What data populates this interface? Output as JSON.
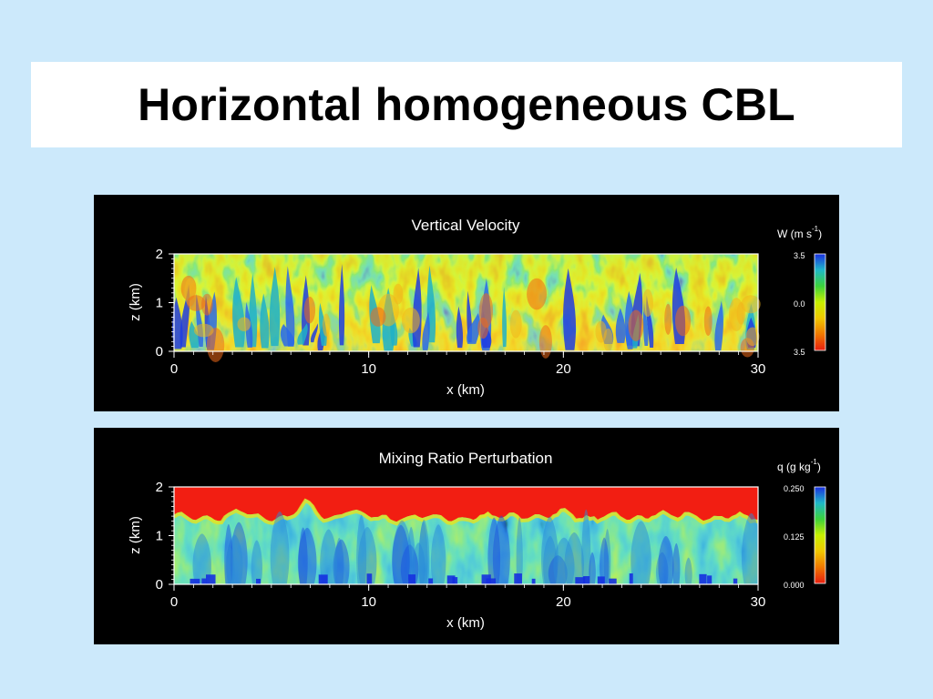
{
  "slide": {
    "title": "Horizontal homogeneous CBL"
  },
  "chart_data": [
    {
      "type": "heatmap",
      "title": "Vertical Velocity",
      "xlabel": "x (km)",
      "ylabel": "z (km)",
      "xlim": [
        0,
        30
      ],
      "ylim": [
        0,
        2
      ],
      "x_ticks": [
        "0",
        "10",
        "20",
        "30"
      ],
      "y_ticks": [
        "0",
        "1",
        "2"
      ],
      "colorbar": {
        "label": "W (m s",
        "label_sup": "-1",
        "label_close": ")",
        "tick_labels": [
          "3.5",
          "0.0",
          "3.5"
        ],
        "colors": [
          "#1a2fe0",
          "#1fb8c8",
          "#3cd23c",
          "#c8f000",
          "#f0c800",
          "#f07800",
          "#e81e10"
        ]
      }
    },
    {
      "type": "heatmap",
      "title": "Mixing Ratio Perturbation",
      "xlabel": "x (km)",
      "ylabel": "z (km)",
      "xlim": [
        0,
        30
      ],
      "ylim": [
        0,
        2
      ],
      "x_ticks": [
        "0",
        "10",
        "20",
        "30"
      ],
      "y_ticks": [
        "0",
        "1",
        "2"
      ],
      "colorbar": {
        "label": "q (g kg",
        "label_sup": "-1",
        "label_close": ")",
        "tick_labels": [
          "0.250",
          "0.125",
          "0.000"
        ],
        "colors": [
          "#1a2fe0",
          "#1fb8c8",
          "#3cd23c",
          "#c8f000",
          "#f0c800",
          "#f07800",
          "#e81e10"
        ]
      }
    }
  ]
}
